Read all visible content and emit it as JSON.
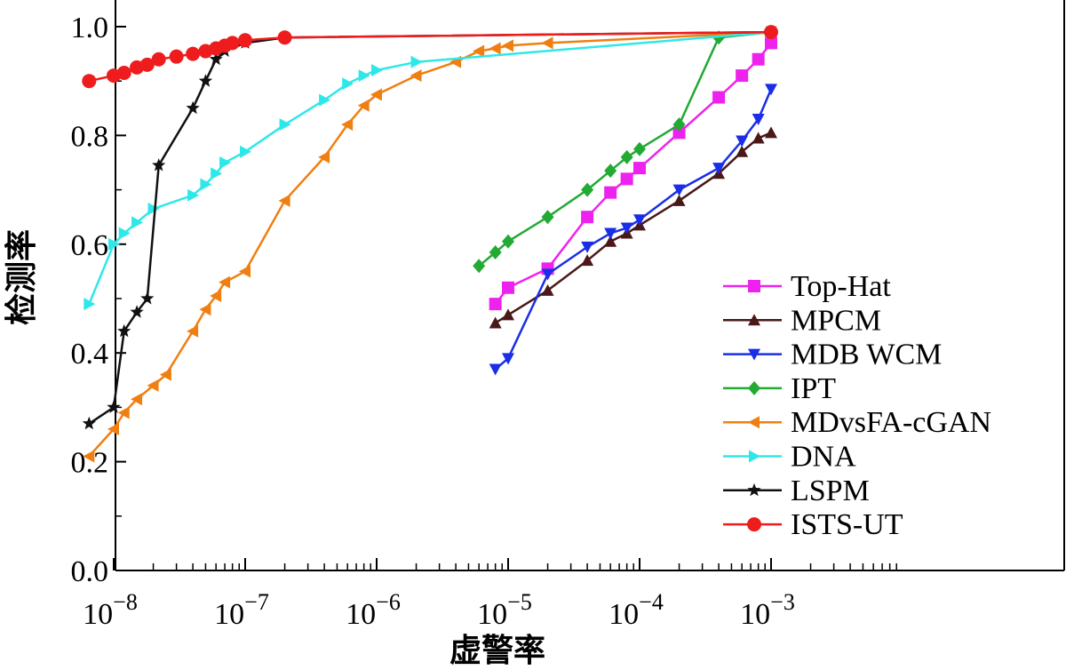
{
  "chart_data": {
    "type": "line",
    "xscale": "log",
    "xlabel": "虚警率",
    "ylabel": "检测率",
    "xlim": [
      6.5e-09,
      0.1
    ],
    "ylim": [
      0.0,
      1.0
    ],
    "x_ticks": [
      {
        "value": 1e-08,
        "base": "10",
        "exp": "−8"
      },
      {
        "value": 1e-07,
        "base": "10",
        "exp": "−7"
      },
      {
        "value": 1e-06,
        "base": "10",
        "exp": "−6"
      },
      {
        "value": 1e-05,
        "base": "10",
        "exp": "−5"
      },
      {
        "value": 0.0001,
        "base": "10",
        "exp": "−4"
      },
      {
        "value": 0.001,
        "base": "10",
        "exp": "−3"
      }
    ],
    "y_ticks": [
      "0.0",
      "0.2",
      "0.4",
      "0.6",
      "0.8",
      "1.0"
    ],
    "legend_position": "right",
    "series": [
      {
        "name": "Top-Hat",
        "color": "#ee22ee",
        "marker": "square",
        "x": [
          8e-06,
          1e-05,
          2e-05,
          4e-05,
          6e-05,
          8e-05,
          0.0001,
          0.0002,
          0.0004,
          0.0006,
          0.0008,
          0.001
        ],
        "y": [
          0.49,
          0.52,
          0.555,
          0.65,
          0.695,
          0.72,
          0.74,
          0.805,
          0.87,
          0.91,
          0.94,
          0.97
        ]
      },
      {
        "name": "MPCM",
        "color": "#4a1818",
        "marker": "triangle-up",
        "x": [
          8e-06,
          1e-05,
          2e-05,
          4e-05,
          6e-05,
          8e-05,
          0.0001,
          0.0002,
          0.0004,
          0.0006,
          0.0008,
          0.001
        ],
        "y": [
          0.455,
          0.47,
          0.515,
          0.57,
          0.605,
          0.62,
          0.635,
          0.68,
          0.73,
          0.77,
          0.795,
          0.805
        ]
      },
      {
        "name": "MDB WCM",
        "color": "#1a2ee8",
        "marker": "triangle-down",
        "x": [
          8e-06,
          1e-05,
          2e-05,
          4e-05,
          6e-05,
          8e-05,
          0.0001,
          0.0002,
          0.0004,
          0.0006,
          0.0008,
          0.001
        ],
        "y": [
          0.37,
          0.39,
          0.545,
          0.595,
          0.62,
          0.63,
          0.645,
          0.7,
          0.74,
          0.79,
          0.83,
          0.885
        ]
      },
      {
        "name": "IPT",
        "color": "#22aa33",
        "marker": "diamond",
        "x": [
          6e-06,
          8e-06,
          1e-05,
          2e-05,
          4e-05,
          6e-05,
          8e-05,
          0.0001,
          0.0002,
          0.0004,
          0.001
        ],
        "y": [
          0.56,
          0.585,
          0.605,
          0.65,
          0.7,
          0.735,
          0.76,
          0.775,
          0.82,
          0.98,
          0.99
        ]
      },
      {
        "name": "MDvsFA-cGAN",
        "color": "#f07f12",
        "marker": "triangle-left",
        "x": [
          6.5e-09,
          1e-08,
          1.2e-08,
          1.5e-08,
          2e-08,
          2.5e-08,
          4e-08,
          5e-08,
          6e-08,
          7e-08,
          1e-07,
          2e-07,
          4e-07,
          6e-07,
          8e-07,
          1e-06,
          2e-06,
          4e-06,
          6e-06,
          8e-06,
          1e-05,
          2e-05,
          0.001
        ],
        "y": [
          0.21,
          0.26,
          0.29,
          0.315,
          0.34,
          0.36,
          0.44,
          0.48,
          0.505,
          0.53,
          0.55,
          0.68,
          0.76,
          0.82,
          0.855,
          0.875,
          0.91,
          0.935,
          0.955,
          0.96,
          0.965,
          0.97,
          0.99
        ]
      },
      {
        "name": "DNA",
        "color": "#2ee8e8",
        "marker": "triangle-right",
        "x": [
          6.5e-09,
          1e-08,
          1.2e-08,
          1.5e-08,
          2e-08,
          4e-08,
          5e-08,
          6e-08,
          7e-08,
          1e-07,
          2e-07,
          4e-07,
          6e-07,
          8e-07,
          1e-06,
          2e-06,
          0.001
        ],
        "y": [
          0.49,
          0.6,
          0.62,
          0.64,
          0.665,
          0.69,
          0.71,
          0.73,
          0.75,
          0.77,
          0.82,
          0.865,
          0.895,
          0.91,
          0.92,
          0.935,
          0.99
        ]
      },
      {
        "name": "LSPM",
        "color": "#111111",
        "marker": "star",
        "x": [
          6.5e-09,
          1e-08,
          1.2e-08,
          1.5e-08,
          1.8e-08,
          2.2e-08,
          4e-08,
          5e-08,
          6e-08,
          7e-08,
          1e-07,
          2e-07,
          0.001
        ],
        "y": [
          0.27,
          0.3,
          0.44,
          0.475,
          0.5,
          0.745,
          0.85,
          0.9,
          0.94,
          0.955,
          0.97,
          0.98,
          0.99
        ]
      },
      {
        "name": "ISTS-UT",
        "color": "#ee1c1c",
        "marker": "circle",
        "x": [
          6.5e-09,
          1e-08,
          1.2e-08,
          1.5e-08,
          1.8e-08,
          2.2e-08,
          3e-08,
          4e-08,
          5e-08,
          6e-08,
          7e-08,
          8e-08,
          1e-07,
          2e-07,
          0.001
        ],
        "y": [
          0.9,
          0.91,
          0.915,
          0.925,
          0.93,
          0.94,
          0.945,
          0.95,
          0.955,
          0.96,
          0.965,
          0.97,
          0.975,
          0.98,
          0.99
        ]
      }
    ]
  }
}
